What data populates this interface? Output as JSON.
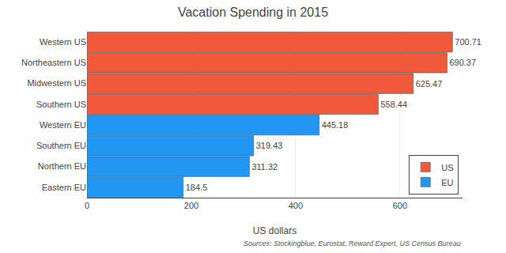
{
  "chart_data": {
    "type": "bar",
    "orientation": "horizontal",
    "title": "Vacation Spending in 2015",
    "xlabel": "US dollars",
    "annotations": [
      "Sources: Stockingblue, Eurostat, Reward Expert, US Census Bureau"
    ],
    "categories": [
      "Western US",
      "Northeastern US",
      "Midwestern US",
      "Southern US",
      "Western EU",
      "Southern EU",
      "Northern EU",
      "Eastern EU"
    ],
    "series": [
      {
        "name": "US",
        "color": "#f05a3a",
        "values": [
          700.71,
          690.37,
          625.47,
          558.44,
          null,
          null,
          null,
          null
        ]
      },
      {
        "name": "EU",
        "color": "#2196f3",
        "values": [
          null,
          null,
          null,
          null,
          445.18,
          319.43,
          311.32,
          184.5
        ]
      }
    ],
    "xlim": [
      0,
      720
    ],
    "xticks": [
      0,
      200,
      400,
      600
    ],
    "grid": true,
    "legend": "lower right",
    "data_labels": true
  }
}
